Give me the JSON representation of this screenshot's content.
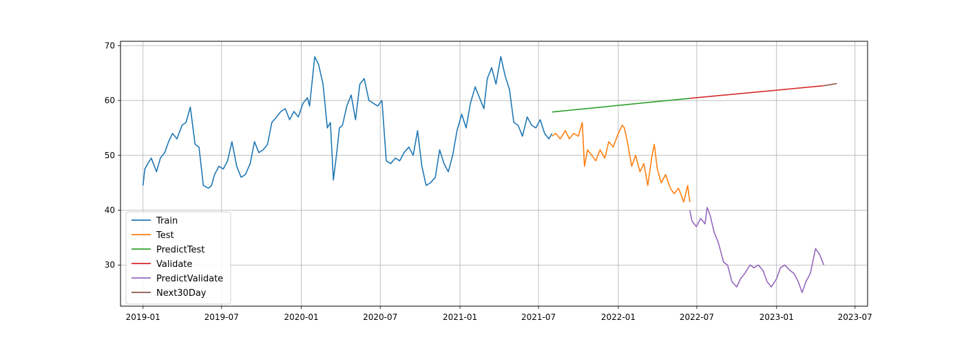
{
  "chart_data": {
    "type": "line",
    "title": "",
    "xlabel": "",
    "ylabel": "",
    "xlim": [
      "2018-11-10",
      "2023-07-30"
    ],
    "ylim": [
      22.5,
      70.8
    ],
    "grid": true,
    "legend_position": "lower-left",
    "x_ticks": [
      "2019-01",
      "2019-07",
      "2020-01",
      "2020-07",
      "2021-01",
      "2021-07",
      "2022-01",
      "2022-07",
      "2023-01",
      "2023-07"
    ],
    "y_ticks": [
      30,
      40,
      50,
      60,
      70
    ],
    "series": [
      {
        "name": "Train",
        "color": "#1f77b4",
        "x": [
          "2019-01-01",
          "2019-01-05",
          "2019-01-12",
          "2019-01-20",
          "2019-02-01",
          "2019-02-10",
          "2019-02-20",
          "2019-03-01",
          "2019-03-10",
          "2019-03-20",
          "2019-04-01",
          "2019-04-10",
          "2019-04-20",
          "2019-05-01",
          "2019-05-10",
          "2019-05-20",
          "2019-06-01",
          "2019-06-08",
          "2019-06-15",
          "2019-06-25",
          "2019-07-05",
          "2019-07-15",
          "2019-07-25",
          "2019-08-05",
          "2019-08-15",
          "2019-08-25",
          "2019-09-05",
          "2019-09-15",
          "2019-09-25",
          "2019-10-05",
          "2019-10-15",
          "2019-10-25",
          "2019-11-05",
          "2019-11-15",
          "2019-11-25",
          "2019-12-05",
          "2019-12-15",
          "2019-12-25",
          "2020-01-05",
          "2020-01-15",
          "2020-01-20",
          "2020-02-01",
          "2020-02-10",
          "2020-02-20",
          "2020-03-01",
          "2020-03-08",
          "2020-03-15",
          "2020-03-22",
          "2020-03-29",
          "2020-04-05",
          "2020-04-15",
          "2020-04-25",
          "2020-05-05",
          "2020-05-15",
          "2020-05-25",
          "2020-06-05",
          "2020-06-15",
          "2020-06-25",
          "2020-07-05",
          "2020-07-15",
          "2020-07-25",
          "2020-08-05",
          "2020-08-15",
          "2020-08-25",
          "2020-09-05",
          "2020-09-15",
          "2020-09-25",
          "2020-10-05",
          "2020-10-15",
          "2020-10-25",
          "2020-11-05",
          "2020-11-15",
          "2020-11-25",
          "2020-12-05",
          "2020-12-15",
          "2020-12-25",
          "2021-01-05",
          "2021-01-15",
          "2021-01-25",
          "2021-02-05",
          "2021-02-15",
          "2021-02-25",
          "2021-03-05",
          "2021-03-15",
          "2021-03-25",
          "2021-04-05",
          "2021-04-15",
          "2021-04-25",
          "2021-05-05",
          "2021-05-15",
          "2021-05-25",
          "2021-06-05",
          "2021-06-15",
          "2021-06-25",
          "2021-07-05",
          "2021-07-15",
          "2021-07-25",
          "2021-08-01"
        ],
        "y": [
          44.5,
          47.5,
          48.5,
          49.5,
          47.0,
          49.5,
          50.5,
          52.5,
          54.0,
          53.0,
          55.5,
          56.0,
          58.8,
          52.0,
          51.5,
          44.5,
          44.0,
          44.5,
          46.5,
          48.0,
          47.5,
          49.0,
          52.5,
          48.0,
          46.0,
          46.5,
          48.5,
          52.5,
          50.5,
          51.0,
          52.0,
          56.0,
          57.0,
          58.0,
          58.5,
          56.5,
          58.0,
          57.0,
          59.5,
          60.5,
          59.0,
          68.0,
          66.5,
          63.0,
          55.0,
          56.0,
          45.5,
          50.0,
          55.0,
          55.5,
          59.0,
          61.0,
          56.5,
          63.0,
          64.0,
          60.0,
          59.5,
          59.0,
          60.0,
          49.0,
          48.5,
          49.5,
          49.0,
          50.5,
          51.5,
          50.0,
          54.5,
          48.0,
          44.5,
          45.0,
          46.0,
          51.0,
          48.5,
          47.0,
          50.0,
          54.5,
          57.5,
          55.0,
          59.5,
          62.5,
          60.5,
          58.5,
          64.0,
          66.0,
          63.0,
          68.0,
          64.5,
          62.0,
          56.0,
          55.5,
          53.5,
          57.0,
          55.5,
          55.0,
          56.5,
          54.0,
          53.0,
          54.0
        ]
      },
      {
        "name": "Test",
        "color": "#ff7f0e",
        "x": [
          "2021-08-01",
          "2021-08-10",
          "2021-08-20",
          "2021-09-01",
          "2021-09-10",
          "2021-09-20",
          "2021-10-01",
          "2021-10-10",
          "2021-10-15",
          "2021-10-22",
          "2021-11-01",
          "2021-11-10",
          "2021-11-20",
          "2021-12-01",
          "2021-12-10",
          "2021-12-20",
          "2022-01-01",
          "2022-01-10",
          "2022-01-15",
          "2022-01-22",
          "2022-02-01",
          "2022-02-10",
          "2022-02-20",
          "2022-03-01",
          "2022-03-10",
          "2022-03-20",
          "2022-03-25",
          "2022-04-01",
          "2022-04-10",
          "2022-04-20",
          "2022-05-01",
          "2022-05-10",
          "2022-05-20",
          "2022-06-01",
          "2022-06-10",
          "2022-06-15"
        ],
        "y": [
          53.5,
          54.0,
          53.0,
          54.5,
          53.0,
          54.0,
          53.5,
          56.0,
          48.0,
          51.0,
          50.0,
          49.0,
          51.0,
          49.5,
          52.5,
          51.5,
          54.0,
          55.5,
          55.0,
          52.5,
          48.0,
          50.0,
          47.0,
          48.5,
          44.5,
          50.0,
          52.0,
          47.5,
          45.0,
          46.5,
          44.0,
          43.0,
          44.0,
          41.5,
          44.5,
          41.5
        ]
      },
      {
        "name": "PredictTest",
        "color": "#2ca02c",
        "x": [
          "2021-08-01",
          "2022-06-15"
        ],
        "y": [
          57.9,
          60.4
        ]
      },
      {
        "name": "Validate",
        "color": "#d62728",
        "x": [
          "2022-06-15",
          "2023-04-20"
        ],
        "y": [
          60.4,
          62.7
        ]
      },
      {
        "name": "PredictValidate",
        "color": "#9467bd",
        "x": [
          "2022-06-15",
          "2022-06-20",
          "2022-06-30",
          "2022-07-10",
          "2022-07-20",
          "2022-07-25",
          "2022-08-01",
          "2022-08-10",
          "2022-08-20",
          "2022-09-01",
          "2022-09-10",
          "2022-09-20",
          "2022-10-01",
          "2022-10-10",
          "2022-10-20",
          "2022-11-01",
          "2022-11-10",
          "2022-11-20",
          "2022-12-01",
          "2022-12-10",
          "2022-12-20",
          "2023-01-01",
          "2023-01-10",
          "2023-01-20",
          "2023-02-01",
          "2023-02-10",
          "2023-02-20",
          "2023-03-01",
          "2023-03-10",
          "2023-03-20",
          "2023-04-01",
          "2023-04-10",
          "2023-04-20"
        ],
        "y": [
          40.0,
          38.0,
          37.0,
          38.5,
          37.5,
          40.5,
          39.0,
          36.0,
          34.0,
          30.5,
          30.0,
          27.0,
          26.0,
          27.5,
          28.5,
          30.0,
          29.5,
          30.0,
          29.0,
          27.0,
          26.0,
          27.5,
          29.5,
          30.0,
          29.0,
          28.5,
          27.0,
          25.0,
          27.0,
          28.5,
          33.0,
          32.0,
          30.0
        ]
      },
      {
        "name": "Next30Day",
        "color": "#8c564b",
        "x": [
          "2023-04-20",
          "2023-05-20"
        ],
        "y": [
          62.7,
          63.1
        ]
      }
    ]
  }
}
